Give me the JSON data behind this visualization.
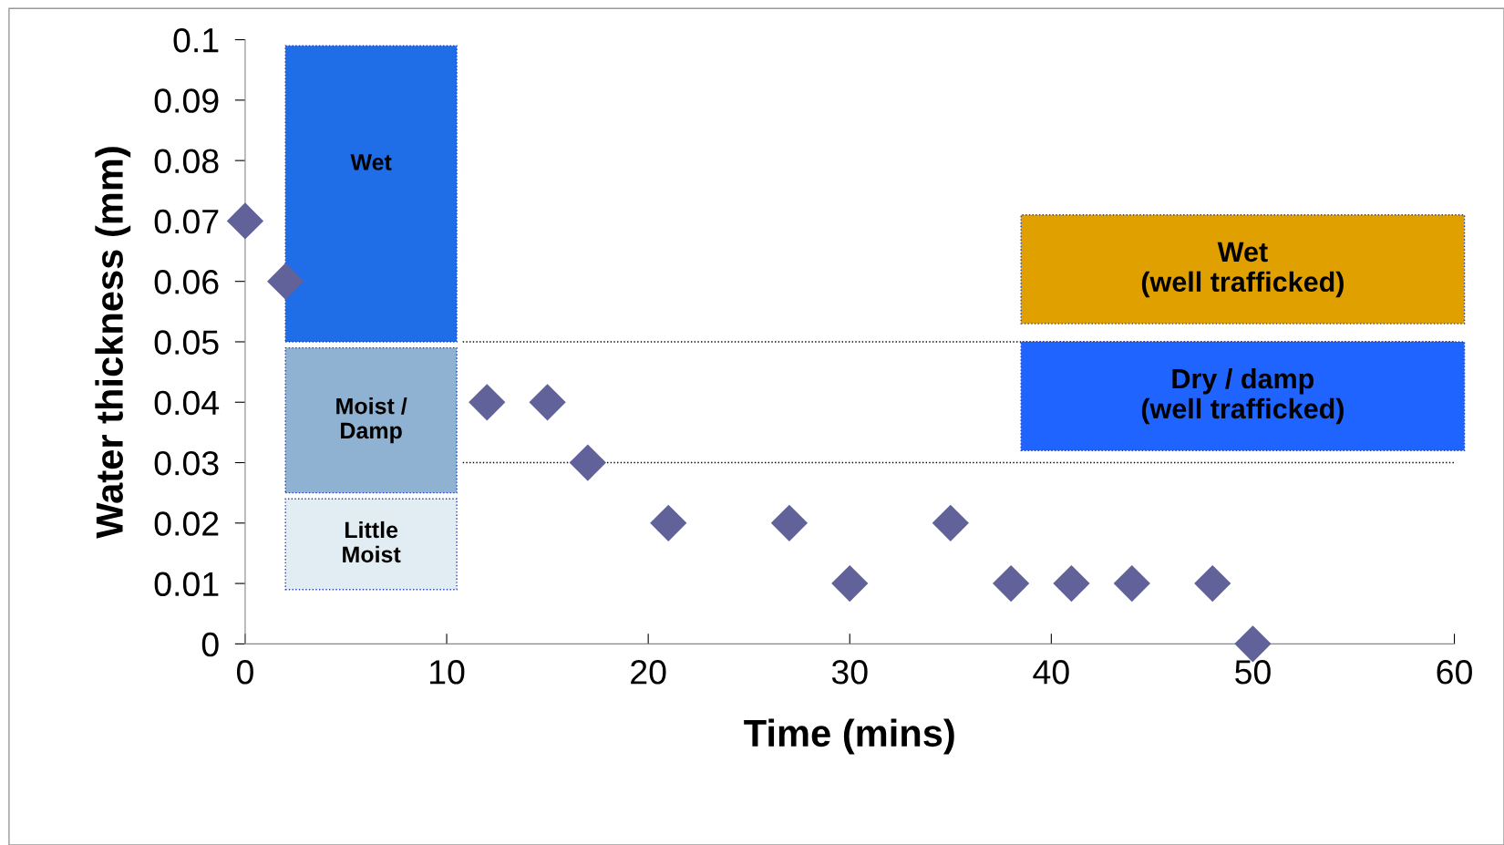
{
  "chart_data": {
    "type": "scatter",
    "xlabel": "Time (mins)",
    "ylabel": "Water thickness (mm)",
    "x": [
      0,
      2,
      12,
      15,
      17,
      21,
      27,
      30,
      35,
      38,
      41,
      44,
      48,
      50
    ],
    "series": [
      {
        "color": "#62629a",
        "values": [
          0.07,
          0.06,
          0.04,
          0.04,
          0.03,
          0.02,
          0.02,
          0.01,
          0.02,
          0.01,
          0.01,
          0.01,
          0.01,
          0
        ]
      }
    ],
    "marker": "diamond",
    "xlim": [
      0,
      60
    ],
    "xticks": [
      0,
      10,
      20,
      30,
      40,
      50,
      60
    ],
    "ylim": [
      0,
      0.1
    ],
    "yticks": [
      0,
      0.01,
      0.02,
      0.03,
      0.04,
      0.05,
      0.06,
      0.07,
      0.08,
      0.09,
      0.1
    ],
    "grid": false,
    "legend": false,
    "ref_lines": [
      {
        "axis": "y",
        "value": 0.05,
        "line_style": "dotted",
        "color": "#000000"
      },
      {
        "axis": "y",
        "value": 0.03,
        "line_style": "dotted",
        "color": "#000000"
      }
    ],
    "bands": [
      {
        "axis": "y",
        "from": 0.05,
        "to": 0.099,
        "label": "Wet",
        "color": "#1f6ee8"
      },
      {
        "axis": "y",
        "from": 0.025,
        "to": 0.049,
        "label": "Moist /\nDamp",
        "color": "#8fb2d2"
      },
      {
        "axis": "y",
        "from": 0.009,
        "to": 0.024,
        "label": "Little\nMoist",
        "color": "#e2edf3"
      },
      {
        "axis": "y",
        "from": 0.053,
        "to": 0.071,
        "label": "Wet\n(well trafficked)",
        "color": "#e0a000"
      },
      {
        "axis": "y",
        "from": 0.032,
        "to": 0.05,
        "label": "Dry / damp\n(well trafficked)",
        "color": "#1f64ff"
      }
    ]
  }
}
